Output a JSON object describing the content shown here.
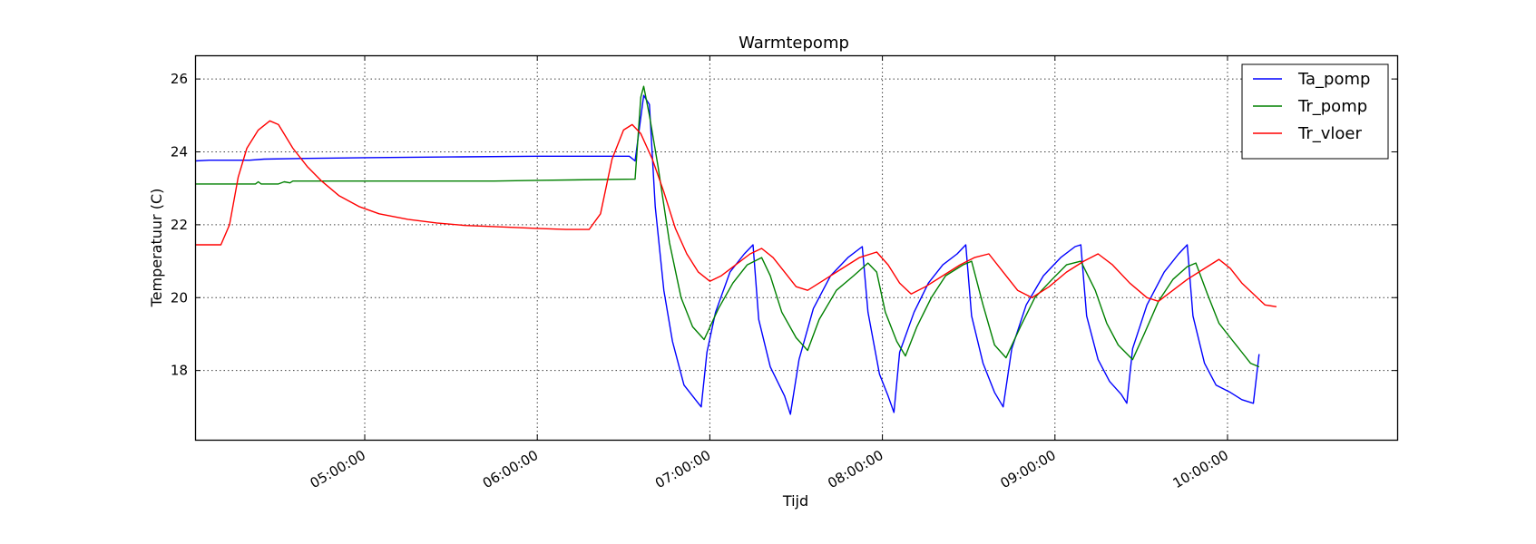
{
  "chart_data": {
    "type": "line",
    "title": "Warmtepomp",
    "xlabel": "Tijd",
    "ylabel": "Temperatuur (C)",
    "grid": true,
    "legend_position": "top-right",
    "xlim": [
      "04:01",
      "10:59"
    ],
    "ylim": [
      16.1,
      26.65
    ],
    "x_ticks": [
      "05:00:00",
      "06:00:00",
      "07:00:00",
      "08:00:00",
      "09:00:00",
      "10:00:00"
    ],
    "y_ticks": [
      18,
      20,
      22,
      24,
      26
    ],
    "series": [
      {
        "name": "Ta_pomp",
        "color": "#0000ff",
        "points": [
          [
            "04:01",
            23.75
          ],
          [
            "04:06",
            23.77
          ],
          [
            "04:20",
            23.77
          ],
          [
            "04:25",
            23.8
          ],
          [
            "04:40",
            23.82
          ],
          [
            "05:00",
            23.84
          ],
          [
            "05:30",
            23.86
          ],
          [
            "06:00",
            23.88
          ],
          [
            "06:32",
            23.88
          ],
          [
            "06:34",
            23.75
          ],
          [
            "06:37",
            25.55
          ],
          [
            "06:39",
            25.3
          ],
          [
            "06:41",
            22.5
          ],
          [
            "06:44",
            20.2
          ],
          [
            "06:47",
            18.8
          ],
          [
            "06:51",
            17.6
          ],
          [
            "06:56",
            17.1
          ],
          [
            "06:57",
            17.0
          ],
          [
            "06:59",
            18.5
          ],
          [
            "07:02",
            19.6
          ],
          [
            "07:07",
            20.7
          ],
          [
            "07:12",
            21.2
          ],
          [
            "07:15",
            21.45
          ],
          [
            "07:17",
            19.4
          ],
          [
            "07:21",
            18.1
          ],
          [
            "07:26",
            17.3
          ],
          [
            "07:28",
            16.8
          ],
          [
            "07:31",
            18.3
          ],
          [
            "07:36",
            19.7
          ],
          [
            "07:42",
            20.6
          ],
          [
            "07:48",
            21.1
          ],
          [
            "07:53",
            21.4
          ],
          [
            "07:55",
            19.6
          ],
          [
            "07:59",
            17.9
          ],
          [
            "08:02",
            17.3
          ],
          [
            "08:04",
            16.85
          ],
          [
            "08:06",
            18.5
          ],
          [
            "08:11",
            19.6
          ],
          [
            "08:16",
            20.4
          ],
          [
            "08:21",
            20.9
          ],
          [
            "08:26",
            21.2
          ],
          [
            "08:29",
            21.45
          ],
          [
            "08:31",
            19.5
          ],
          [
            "08:35",
            18.2
          ],
          [
            "08:39",
            17.4
          ],
          [
            "08:42",
            17.0
          ],
          [
            "08:45",
            18.6
          ],
          [
            "08:50",
            19.8
          ],
          [
            "08:56",
            20.6
          ],
          [
            "09:02",
            21.1
          ],
          [
            "09:07",
            21.4
          ],
          [
            "09:09",
            21.45
          ],
          [
            "09:11",
            19.5
          ],
          [
            "09:15",
            18.3
          ],
          [
            "09:19",
            17.7
          ],
          [
            "09:23",
            17.35
          ],
          [
            "09:25",
            17.1
          ],
          [
            "09:27",
            18.6
          ],
          [
            "09:32",
            19.8
          ],
          [
            "09:38",
            20.7
          ],
          [
            "09:43",
            21.2
          ],
          [
            "09:46",
            21.45
          ],
          [
            "09:48",
            19.5
          ],
          [
            "09:52",
            18.2
          ],
          [
            "09:56",
            17.6
          ],
          [
            "10:01",
            17.4
          ],
          [
            "10:05",
            17.2
          ],
          [
            "10:09",
            17.1
          ],
          [
            "10:11",
            18.45
          ]
        ]
      },
      {
        "name": "Tr_pomp",
        "color": "#008000",
        "points": [
          [
            "04:01",
            23.12
          ],
          [
            "04:22",
            23.12
          ],
          [
            "04:23",
            23.18
          ],
          [
            "04:24",
            23.12
          ],
          [
            "04:30",
            23.12
          ],
          [
            "04:32",
            23.18
          ],
          [
            "04:34",
            23.15
          ],
          [
            "04:35",
            23.2
          ],
          [
            "05:00",
            23.2
          ],
          [
            "05:30",
            23.2
          ],
          [
            "05:45",
            23.2
          ],
          [
            "06:00",
            23.22
          ],
          [
            "06:34",
            23.25
          ],
          [
            "06:36",
            25.5
          ],
          [
            "06:37",
            25.8
          ],
          [
            "06:39",
            25.0
          ],
          [
            "06:42",
            23.6
          ],
          [
            "06:46",
            21.5
          ],
          [
            "06:50",
            20.0
          ],
          [
            "06:54",
            19.2
          ],
          [
            "06:58",
            18.85
          ],
          [
            "07:03",
            19.7
          ],
          [
            "07:08",
            20.4
          ],
          [
            "07:13",
            20.9
          ],
          [
            "07:18",
            21.1
          ],
          [
            "07:21",
            20.6
          ],
          [
            "07:25",
            19.6
          ],
          [
            "07:30",
            18.9
          ],
          [
            "07:34",
            18.55
          ],
          [
            "07:38",
            19.4
          ],
          [
            "07:44",
            20.2
          ],
          [
            "07:50",
            20.6
          ],
          [
            "07:55",
            20.95
          ],
          [
            "07:58",
            20.7
          ],
          [
            "08:01",
            19.6
          ],
          [
            "08:05",
            18.8
          ],
          [
            "08:08",
            18.4
          ],
          [
            "08:12",
            19.2
          ],
          [
            "08:17",
            20.0
          ],
          [
            "08:22",
            20.6
          ],
          [
            "08:28",
            20.9
          ],
          [
            "08:31",
            21.0
          ],
          [
            "08:35",
            19.8
          ],
          [
            "08:39",
            18.7
          ],
          [
            "08:43",
            18.35
          ],
          [
            "08:48",
            19.2
          ],
          [
            "08:53",
            20.0
          ],
          [
            "08:59",
            20.5
          ],
          [
            "09:04",
            20.9
          ],
          [
            "09:09",
            21.0
          ],
          [
            "09:14",
            20.2
          ],
          [
            "09:18",
            19.3
          ],
          [
            "09:22",
            18.7
          ],
          [
            "09:27",
            18.3
          ],
          [
            "09:31",
            19.0
          ],
          [
            "09:36",
            19.9
          ],
          [
            "09:41",
            20.5
          ],
          [
            "09:46",
            20.85
          ],
          [
            "09:49",
            20.95
          ],
          [
            "09:53",
            20.1
          ],
          [
            "09:57",
            19.3
          ],
          [
            "10:01",
            18.9
          ],
          [
            "10:05",
            18.5
          ],
          [
            "10:08",
            18.2
          ],
          [
            "10:11",
            18.1
          ]
        ]
      },
      {
        "name": "Tr_vloer",
        "color": "#ff0000",
        "points": [
          [
            "04:01",
            21.45
          ],
          [
            "04:10",
            21.45
          ],
          [
            "04:13",
            22.0
          ],
          [
            "04:16",
            23.3
          ],
          [
            "04:19",
            24.1
          ],
          [
            "04:23",
            24.6
          ],
          [
            "04:27",
            24.85
          ],
          [
            "04:30",
            24.75
          ],
          [
            "04:35",
            24.1
          ],
          [
            "04:40",
            23.6
          ],
          [
            "04:45",
            23.2
          ],
          [
            "04:51",
            22.8
          ],
          [
            "04:58",
            22.5
          ],
          [
            "05:05",
            22.3
          ],
          [
            "05:15",
            22.15
          ],
          [
            "05:25",
            22.05
          ],
          [
            "05:35",
            21.98
          ],
          [
            "05:45",
            21.95
          ],
          [
            "06:00",
            21.9
          ],
          [
            "06:10",
            21.87
          ],
          [
            "06:18",
            21.87
          ],
          [
            "06:22",
            22.3
          ],
          [
            "06:26",
            23.8
          ],
          [
            "06:30",
            24.6
          ],
          [
            "06:33",
            24.75
          ],
          [
            "06:36",
            24.5
          ],
          [
            "06:40",
            23.8
          ],
          [
            "06:44",
            22.9
          ],
          [
            "06:48",
            21.9
          ],
          [
            "06:52",
            21.2
          ],
          [
            "06:56",
            20.7
          ],
          [
            "07:00",
            20.45
          ],
          [
            "07:04",
            20.6
          ],
          [
            "07:09",
            20.9
          ],
          [
            "07:14",
            21.2
          ],
          [
            "07:18",
            21.35
          ],
          [
            "07:22",
            21.1
          ],
          [
            "07:26",
            20.7
          ],
          [
            "07:30",
            20.3
          ],
          [
            "07:34",
            20.2
          ],
          [
            "07:40",
            20.5
          ],
          [
            "07:46",
            20.8
          ],
          [
            "07:52",
            21.1
          ],
          [
            "07:58",
            21.25
          ],
          [
            "08:02",
            20.9
          ],
          [
            "08:06",
            20.4
          ],
          [
            "08:10",
            20.1
          ],
          [
            "08:15",
            20.3
          ],
          [
            "08:21",
            20.6
          ],
          [
            "08:27",
            20.9
          ],
          [
            "08:32",
            21.1
          ],
          [
            "08:37",
            21.2
          ],
          [
            "08:42",
            20.7
          ],
          [
            "08:47",
            20.2
          ],
          [
            "08:52",
            20.0
          ],
          [
            "08:58",
            20.3
          ],
          [
            "09:04",
            20.7
          ],
          [
            "09:10",
            21.0
          ],
          [
            "09:15",
            21.2
          ],
          [
            "09:20",
            20.9
          ],
          [
            "09:26",
            20.4
          ],
          [
            "09:32",
            20.0
          ],
          [
            "09:36",
            19.9
          ],
          [
            "09:41",
            20.2
          ],
          [
            "09:46",
            20.5
          ],
          [
            "09:52",
            20.8
          ],
          [
            "09:57",
            21.05
          ],
          [
            "10:01",
            20.8
          ],
          [
            "10:05",
            20.4
          ],
          [
            "10:09",
            20.1
          ],
          [
            "10:13",
            19.8
          ],
          [
            "10:17",
            19.75
          ]
        ]
      }
    ]
  }
}
